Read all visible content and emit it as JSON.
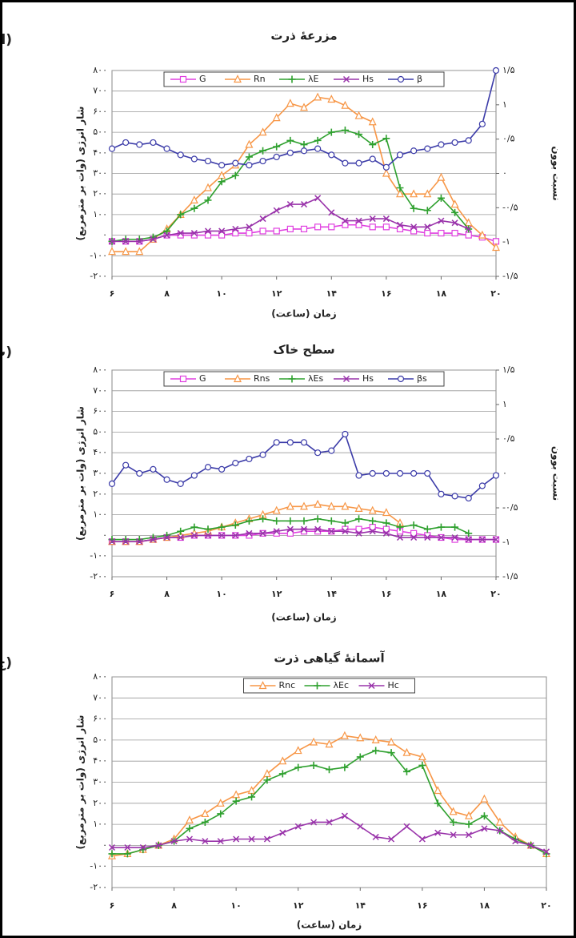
{
  "chart_data": [
    {
      "type": "line",
      "panel_label": "(الف)",
      "title": "مزرعهٔ ذرت",
      "x_label": "زمان (ساعت)",
      "y_label": "شار انرژی (وات بر مترمربع)",
      "y2_label": "نسبت بوون",
      "grid": true,
      "x": [
        6,
        6.5,
        7,
        7.5,
        8,
        8.5,
        9,
        9.5,
        10,
        10.5,
        11,
        11.5,
        12,
        12.5,
        13,
        13.5,
        14,
        14.5,
        15,
        15.5,
        16,
        16.5,
        17,
        17.5,
        18,
        18.5,
        19,
        19.5,
        20
      ],
      "xlim": [
        6,
        20
      ],
      "xticks": [
        {
          "value": 6,
          "label": "۶"
        },
        {
          "value": 8,
          "label": "۸"
        },
        {
          "value": 10,
          "label": "۱۰"
        },
        {
          "value": 12,
          "label": "۱۲"
        },
        {
          "value": 14,
          "label": "۱۴"
        },
        {
          "value": 16,
          "label": "۱۶"
        },
        {
          "value": 18,
          "label": "۱۸"
        },
        {
          "value": 20,
          "label": "۲۰"
        }
      ],
      "ylim": [
        -200,
        800
      ],
      "yticks": [
        {
          "value": -200,
          "label": "-۲۰۰"
        },
        {
          "value": -100,
          "label": "-۱۰۰"
        },
        {
          "value": 0,
          "label": "۰"
        },
        {
          "value": 100,
          "label": "۱۰۰"
        },
        {
          "value": 200,
          "label": "۲۰۰"
        },
        {
          "value": 300,
          "label": "۳۰۰"
        },
        {
          "value": 400,
          "label": "۴۰۰"
        },
        {
          "value": 500,
          "label": "۵۰۰"
        },
        {
          "value": 600,
          "label": "۶۰۰"
        },
        {
          "value": 700,
          "label": "۷۰۰"
        },
        {
          "value": 800,
          "label": "۸۰۰"
        }
      ],
      "y2lim": [
        -1.5,
        1.5
      ],
      "y2ticks": [
        {
          "value": -1.5,
          "label": "-۱/۵"
        },
        {
          "value": -1,
          "label": "-۱"
        },
        {
          "value": -0.5,
          "label": "-۰/۵"
        },
        {
          "value": 0,
          "label": "۰"
        },
        {
          "value": 0.5,
          "label": "۰/۵"
        },
        {
          "value": 1,
          "label": "۱"
        },
        {
          "value": 1.5,
          "label": "۱/۵"
        }
      ],
      "series": [
        {
          "name": "G",
          "color": "#e040e0",
          "marker": "square",
          "values": [
            -30,
            -30,
            -30,
            -20,
            0,
            0,
            0,
            0,
            0,
            10,
            10,
            20,
            20,
            30,
            30,
            40,
            40,
            50,
            50,
            40,
            40,
            30,
            20,
            10,
            10,
            10,
            0,
            -10,
            -30
          ]
        },
        {
          "name": "Rn",
          "color": "#f79646",
          "marker": "triangle",
          "values": [
            -80,
            -80,
            -80,
            -20,
            30,
            100,
            170,
            230,
            290,
            340,
            440,
            500,
            570,
            640,
            620,
            670,
            660,
            630,
            580,
            550,
            300,
            200,
            200,
            200,
            280,
            150,
            60,
            0,
            -60
          ]
        },
        {
          "name": "λE",
          "color": "#2ea02e",
          "marker": "plus",
          "values": [
            -30,
            -20,
            -20,
            -10,
            20,
            100,
            130,
            170,
            260,
            290,
            380,
            410,
            430,
            460,
            440,
            460,
            500,
            510,
            490,
            440,
            470,
            230,
            130,
            120,
            180,
            110,
            30,
            null,
            null
          ]
        },
        {
          "name": "Hs",
          "color": "#9933aa",
          "marker": "x",
          "values": [
            -30,
            -30,
            -30,
            -20,
            0,
            10,
            10,
            20,
            20,
            30,
            40,
            80,
            120,
            150,
            150,
            180,
            110,
            70,
            70,
            80,
            80,
            50,
            40,
            40,
            70,
            60,
            30,
            null,
            null
          ]
        },
        {
          "name": "β",
          "color": "#3b3ba8",
          "marker": "circle",
          "axis": "y2",
          "values": [
            0.36,
            0.45,
            0.42,
            0.45,
            0.36,
            0.27,
            0.21,
            0.18,
            0.12,
            0.15,
            0.12,
            0.18,
            0.24,
            0.3,
            0.33,
            0.36,
            0.27,
            0.15,
            0.15,
            0.21,
            0.09,
            0.27,
            0.33,
            0.36,
            0.42,
            0.45,
            0.48,
            0.72,
            1.5
          ]
        }
      ]
    },
    {
      "type": "line",
      "panel_label": "(ب)",
      "title": "سطح خاک",
      "x_label": "زمان (ساعت)",
      "y_label": "شار انرژی (وات بر مترمربع)",
      "y2_label": "نسبت بوون",
      "grid": true,
      "x": [
        6,
        6.5,
        7,
        7.5,
        8,
        8.5,
        9,
        9.5,
        10,
        10.5,
        11,
        11.5,
        12,
        12.5,
        13,
        13.5,
        14,
        14.5,
        15,
        15.5,
        16,
        16.5,
        17,
        17.5,
        18,
        18.5,
        19,
        19.5,
        20
      ],
      "xlim": [
        6,
        20
      ],
      "xticks": [
        {
          "value": 6,
          "label": "۶"
        },
        {
          "value": 8,
          "label": "۸"
        },
        {
          "value": 10,
          "label": "۱۰"
        },
        {
          "value": 12,
          "label": "۱۲"
        },
        {
          "value": 14,
          "label": "۱۴"
        },
        {
          "value": 16,
          "label": "۱۶"
        },
        {
          "value": 18,
          "label": "۱۸"
        },
        {
          "value": 20,
          "label": "۲۰"
        }
      ],
      "ylim": [
        -200,
        800
      ],
      "yticks": [
        {
          "value": -200,
          "label": "-۲۰۰"
        },
        {
          "value": -100,
          "label": "-۱۰۰"
        },
        {
          "value": 0,
          "label": "۰"
        },
        {
          "value": 100,
          "label": "۱۰۰"
        },
        {
          "value": 200,
          "label": "۲۰۰"
        },
        {
          "value": 300,
          "label": "۳۰۰"
        },
        {
          "value": 400,
          "label": "۴۰۰"
        },
        {
          "value": 500,
          "label": "۵۰۰"
        },
        {
          "value": 600,
          "label": "۶۰۰"
        },
        {
          "value": 700,
          "label": "۷۰۰"
        },
        {
          "value": 800,
          "label": "۸۰۰"
        }
      ],
      "y2lim": [
        -1.5,
        1.5
      ],
      "y2ticks": [
        {
          "value": -1.5,
          "label": "-۱/۵"
        },
        {
          "value": -1,
          "label": "-۱"
        },
        {
          "value": -0.5,
          "label": "-۰/۵"
        },
        {
          "value": 0,
          "label": "۰"
        },
        {
          "value": 0.5,
          "label": "۰/۵"
        },
        {
          "value": 1,
          "label": "۱"
        },
        {
          "value": 1.5,
          "label": "۱/۵"
        }
      ],
      "series": [
        {
          "name": "G",
          "color": "#e040e0",
          "marker": "square",
          "values": [
            -30,
            -30,
            -30,
            -20,
            -10,
            -10,
            0,
            0,
            0,
            0,
            0,
            10,
            10,
            10,
            20,
            20,
            20,
            30,
            30,
            40,
            30,
            20,
            10,
            0,
            -10,
            -20,
            -20,
            -20,
            -20
          ]
        },
        {
          "name": "Rns",
          "color": "#f79646",
          "marker": "triangle",
          "values": [
            -30,
            -30,
            -30,
            -20,
            -10,
            0,
            10,
            20,
            40,
            60,
            80,
            100,
            120,
            140,
            140,
            150,
            140,
            140,
            130,
            120,
            110,
            60,
            null,
            null,
            null,
            null,
            null,
            null,
            null
          ]
        },
        {
          "name": "λEs",
          "color": "#2ea02e",
          "marker": "plus",
          "values": [
            -20,
            -20,
            -20,
            -10,
            0,
            20,
            40,
            30,
            40,
            50,
            70,
            80,
            70,
            70,
            70,
            80,
            70,
            60,
            80,
            70,
            60,
            40,
            50,
            30,
            40,
            40,
            10,
            null,
            null
          ]
        },
        {
          "name": "Hs",
          "color": "#9933aa",
          "marker": "x",
          "values": [
            -30,
            -30,
            -30,
            -20,
            -10,
            -10,
            0,
            0,
            0,
            0,
            10,
            10,
            20,
            30,
            30,
            30,
            20,
            20,
            10,
            20,
            10,
            -10,
            -10,
            -10,
            -10,
            -10,
            -20,
            -20,
            -20
          ]
        },
        {
          "name": "βs",
          "color": "#3b3ba8",
          "marker": "circle",
          "axis": "y2",
          "values": [
            -0.15,
            0.12,
            0,
            0.06,
            -0.09,
            -0.15,
            -0.03,
            0.09,
            0.06,
            0.15,
            0.21,
            0.27,
            0.45,
            0.45,
            0.45,
            0.3,
            0.33,
            0.57,
            -0.03,
            0,
            0,
            0,
            0,
            0,
            -0.3,
            -0.33,
            -0.36,
            -0.18,
            -0.03
          ]
        }
      ]
    },
    {
      "type": "line",
      "panel_label": "(ج)",
      "title": "آسمانهٔ گیاهی ذرت",
      "x_label": "زمان (ساعت)",
      "y_label": "شار انرژی (وات بر مترمربع)",
      "grid": true,
      "x": [
        6,
        6.5,
        7,
        7.5,
        8,
        8.5,
        9,
        9.5,
        10,
        10.5,
        11,
        11.5,
        12,
        12.5,
        13,
        13.5,
        14,
        14.5,
        15,
        15.5,
        16,
        16.5,
        17,
        17.5,
        18,
        18.5,
        19,
        19.5,
        20
      ],
      "xlim": [
        6,
        20
      ],
      "xticks": [
        {
          "value": 6,
          "label": "۶"
        },
        {
          "value": 8,
          "label": "۸"
        },
        {
          "value": 10,
          "label": "۱۰"
        },
        {
          "value": 12,
          "label": "۱۲"
        },
        {
          "value": 14,
          "label": "۱۴"
        },
        {
          "value": 16,
          "label": "۱۶"
        },
        {
          "value": 18,
          "label": "۱۸"
        },
        {
          "value": 20,
          "label": "۲۰"
        }
      ],
      "ylim": [
        -200,
        800
      ],
      "yticks": [
        {
          "value": -200,
          "label": "-۲۰۰"
        },
        {
          "value": -100,
          "label": "-۱۰۰"
        },
        {
          "value": 0,
          "label": "۰"
        },
        {
          "value": 100,
          "label": "۱۰۰"
        },
        {
          "value": 200,
          "label": "۲۰۰"
        },
        {
          "value": 300,
          "label": "۳۰۰"
        },
        {
          "value": 400,
          "label": "۴۰۰"
        },
        {
          "value": 500,
          "label": "۵۰۰"
        },
        {
          "value": 600,
          "label": "۶۰۰"
        },
        {
          "value": 700,
          "label": "۷۰۰"
        },
        {
          "value": 800,
          "label": "۸۰۰"
        }
      ],
      "series": [
        {
          "name": "Rnc",
          "color": "#f79646",
          "marker": "triangle",
          "values": [
            -50,
            -40,
            -20,
            0,
            30,
            120,
            150,
            200,
            240,
            260,
            340,
            400,
            450,
            490,
            480,
            520,
            510,
            500,
            490,
            440,
            420,
            260,
            160,
            140,
            220,
            110,
            40,
            0,
            -40
          ]
        },
        {
          "name": "λEc",
          "color": "#2ea02e",
          "marker": "plus",
          "values": [
            -40,
            -40,
            -20,
            0,
            20,
            80,
            110,
            150,
            210,
            230,
            310,
            340,
            370,
            380,
            360,
            370,
            420,
            450,
            440,
            350,
            380,
            200,
            110,
            100,
            140,
            70,
            30,
            0,
            -40
          ]
        },
        {
          "name": "Hc",
          "color": "#9933aa",
          "marker": "x",
          "values": [
            -10,
            -10,
            -10,
            0,
            20,
            30,
            20,
            20,
            30,
            30,
            30,
            60,
            90,
            110,
            110,
            140,
            90,
            40,
            30,
            90,
            30,
            60,
            50,
            50,
            80,
            70,
            20,
            0,
            -30
          ]
        }
      ]
    }
  ]
}
